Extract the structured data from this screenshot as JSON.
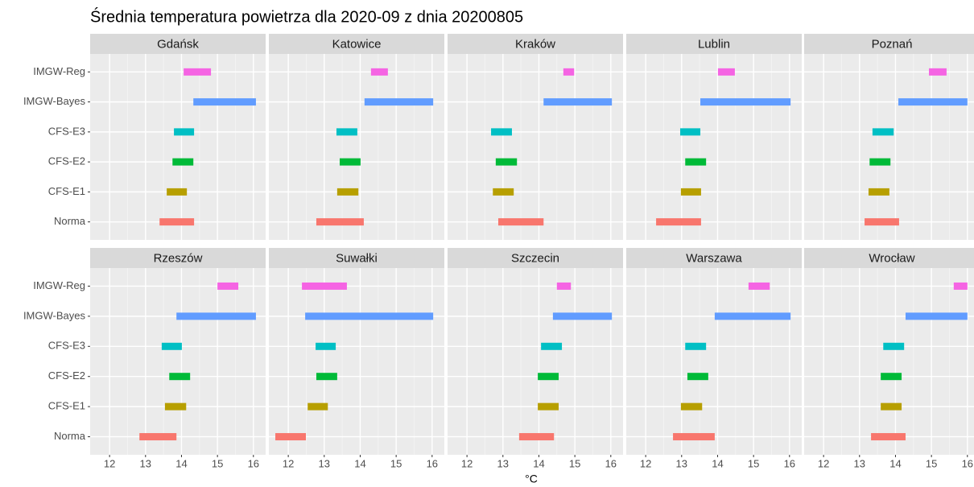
{
  "chart_data": {
    "type": "range",
    "title": "Średnia temperatura powietrza dla 2020-09 z dnia 20200805",
    "x_label": "°C",
    "categories": [
      "IMGW-Reg",
      "IMGW-Bayes",
      "CFS-E3",
      "CFS-E2",
      "CFS-E1",
      "Norma"
    ],
    "colors": [
      "#f564e3",
      "#619cff",
      "#00bfc4",
      "#00ba38",
      "#b79f00",
      "#f8766d"
    ],
    "xlim": [
      11.46,
      16.34
    ],
    "xticks": [
      12,
      13,
      14,
      15,
      16
    ],
    "grid": true,
    "panels": [
      {
        "name": "Gdańsk",
        "low": [
          14.06,
          14.33,
          13.79,
          13.75,
          13.59,
          13.39
        ],
        "high": [
          14.82,
          16.07,
          14.35,
          14.33,
          14.15,
          14.35
        ]
      },
      {
        "name": "Katowice",
        "low": [
          14.3,
          14.12,
          13.34,
          13.43,
          13.36,
          12.78
        ],
        "high": [
          14.77,
          16.03,
          13.92,
          14.01,
          13.95,
          14.1
        ]
      },
      {
        "name": "Kraków",
        "low": [
          14.68,
          14.13,
          12.67,
          12.8,
          12.72,
          12.87
        ],
        "high": [
          14.98,
          16.03,
          13.25,
          13.39,
          13.3,
          14.13
        ]
      },
      {
        "name": "Lublin",
        "low": [
          14.01,
          13.52,
          12.96,
          13.1,
          12.98,
          12.29
        ],
        "high": [
          14.48,
          16.03,
          13.52,
          13.68,
          13.54,
          13.54
        ]
      },
      {
        "name": "Poznań",
        "low": [
          14.93,
          14.08,
          13.36,
          13.28,
          13.25,
          13.14
        ],
        "high": [
          15.42,
          16.0,
          13.95,
          13.86,
          13.83,
          14.1
        ]
      },
      {
        "name": "Rzeszów",
        "low": [
          15.0,
          13.86,
          13.45,
          13.66,
          13.54,
          12.83
        ],
        "high": [
          15.58,
          16.07,
          14.01,
          14.24,
          14.13,
          13.86
        ]
      },
      {
        "name": "Suwałki",
        "low": [
          12.38,
          12.47,
          12.76,
          12.78,
          12.54,
          11.64
        ],
        "high": [
          13.63,
          16.03,
          13.32,
          13.36,
          13.1,
          12.49
        ]
      },
      {
        "name": "Szczecin",
        "low": [
          14.5,
          14.39,
          14.06,
          13.97,
          13.97,
          13.45
        ],
        "high": [
          14.89,
          16.03,
          14.64,
          14.55,
          14.55,
          14.42
        ]
      },
      {
        "name": "Warszawa",
        "low": [
          14.86,
          13.92,
          13.1,
          13.16,
          12.98,
          12.76
        ],
        "high": [
          15.45,
          16.03,
          13.68,
          13.74,
          13.57,
          13.92
        ]
      },
      {
        "name": "Wrocław",
        "low": [
          15.62,
          14.28,
          13.66,
          13.59,
          13.59,
          13.32
        ],
        "high": [
          16.0,
          16.0,
          14.24,
          14.17,
          14.17,
          14.28
        ]
      }
    ]
  }
}
